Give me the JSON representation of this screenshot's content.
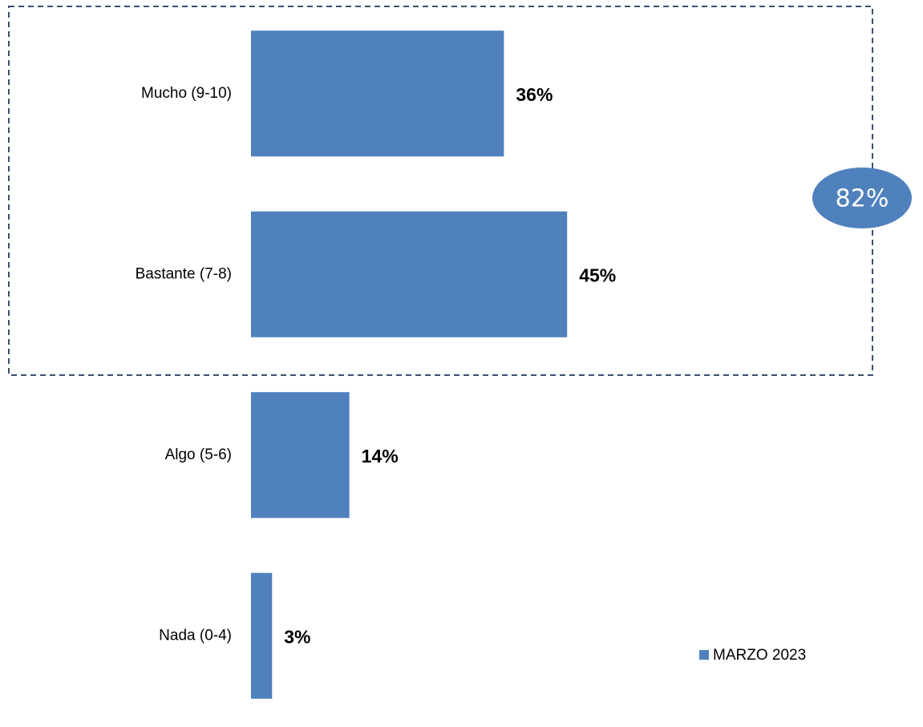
{
  "chart_data": {
    "type": "bar",
    "orientation": "horizontal",
    "categories": [
      "Mucho (9-10)",
      "Bastante (7-8)",
      "Algo (5-6)",
      "Nada (0-4)"
    ],
    "series": [
      {
        "name": "MARZO 2023",
        "color": "#4f81bd",
        "values": [
          36,
          45,
          14,
          3
        ],
        "value_labels": [
          "36%",
          "45%",
          "14%",
          "3%"
        ]
      }
    ],
    "annotation": "82%",
    "legend": "lower right"
  }
}
